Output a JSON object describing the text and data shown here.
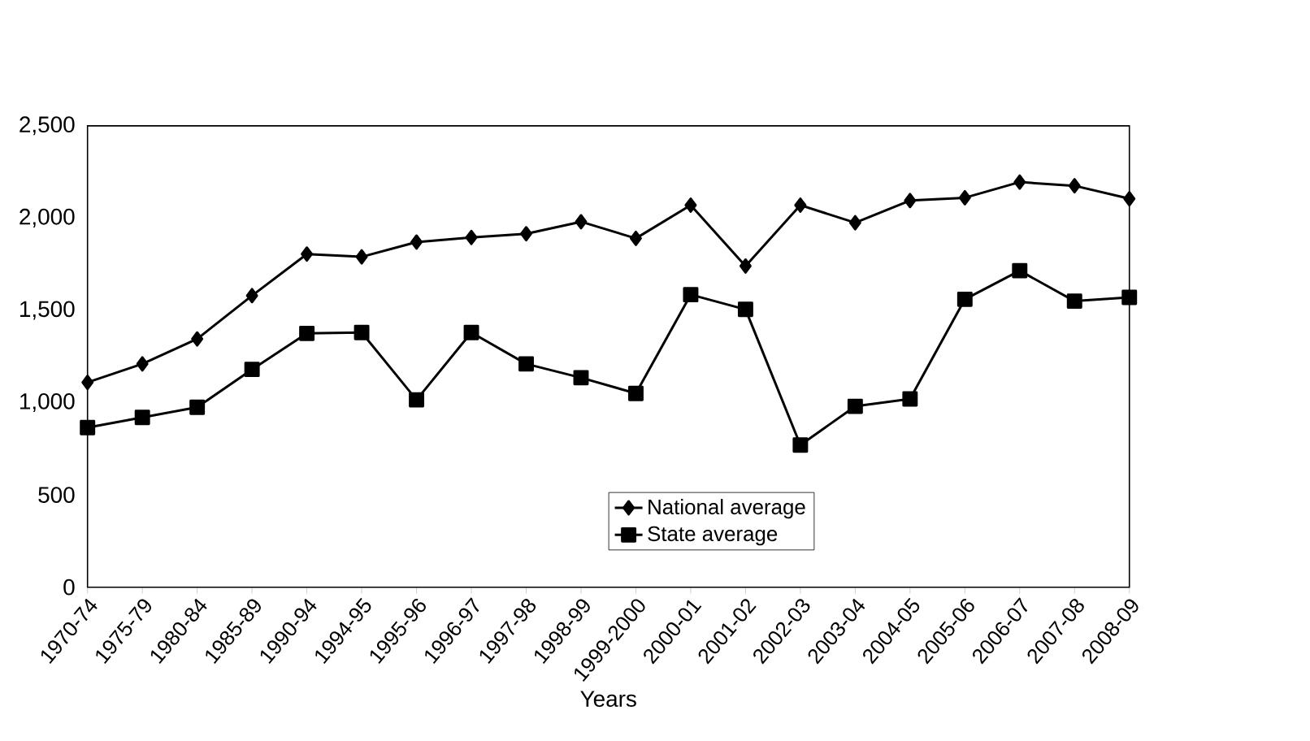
{
  "chart_data": {
    "type": "line",
    "xlabel": "Years",
    "categories": [
      "1970-74",
      "1975-79",
      "1980-84",
      "1985-89",
      "1990-94",
      "1994-95",
      "1995-96",
      "1996-97",
      "1997-98",
      "1998-99",
      "1999-2000",
      "2000-01",
      "2001-02",
      "2002-03",
      "2003-04",
      "2004-05",
      "2005-06",
      "2006-07",
      "2007-08",
      "2008-09"
    ],
    "series": [
      {
        "name": "National average",
        "color": "#000000",
        "marker": "diamond",
        "values": [
          1110,
          1210,
          1345,
          1580,
          1805,
          1790,
          1870,
          1895,
          1915,
          1980,
          1890,
          2070,
          1740,
          2070,
          1975,
          2095,
          2110,
          2195,
          2175,
          2105
        ]
      },
      {
        "name": "State average",
        "color": "#000000",
        "marker": "square",
        "values": [
          865,
          920,
          975,
          1180,
          1375,
          1380,
          1015,
          1380,
          1210,
          1135,
          1050,
          1585,
          1505,
          770,
          980,
          1020,
          1560,
          1715,
          1550,
          1570
        ]
      }
    ],
    "ylim": [
      0,
      2500
    ],
    "yticks": [
      {
        "value": 0,
        "label": "0"
      },
      {
        "value": 500,
        "label": "500"
      },
      {
        "value": 1000,
        "label": "1,000"
      },
      {
        "value": 1500,
        "label": "1,500"
      },
      {
        "value": 2000,
        "label": "2,000"
      },
      {
        "value": 2500,
        "label": "2,500"
      }
    ],
    "grid": false,
    "legend": "bottom",
    "line_style": "solid"
  }
}
